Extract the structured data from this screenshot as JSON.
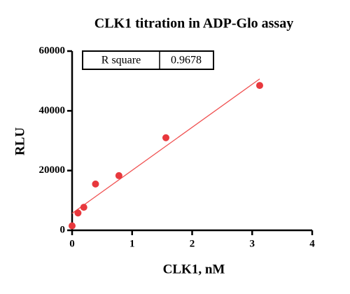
{
  "chart_data": {
    "type": "scatter",
    "title": "CLK1 titration in ADP-Glo assay",
    "x_label": "CLK1, nM",
    "y_label": "RLU",
    "series": [
      {
        "name": "CLK1",
        "color": "#e8383d",
        "x": [
          0,
          0.098,
          0.195,
          0.39,
          0.78,
          1.5625,
          3.125
        ],
        "values": [
          1500,
          5800,
          7700,
          15500,
          18300,
          31000,
          48500
        ]
      }
    ],
    "fit": {
      "color": "#f05050",
      "x": [
        0,
        3.125
      ],
      "values": [
        5667,
        50683
      ]
    },
    "stats": {
      "label": "R square",
      "value": "0.9678"
    },
    "xlim": [
      0,
      4
    ],
    "xticks": [
      0,
      1,
      2,
      3,
      4
    ],
    "ylim": [
      0,
      60000
    ],
    "yticks": [
      0,
      20000,
      40000,
      60000
    ]
  }
}
